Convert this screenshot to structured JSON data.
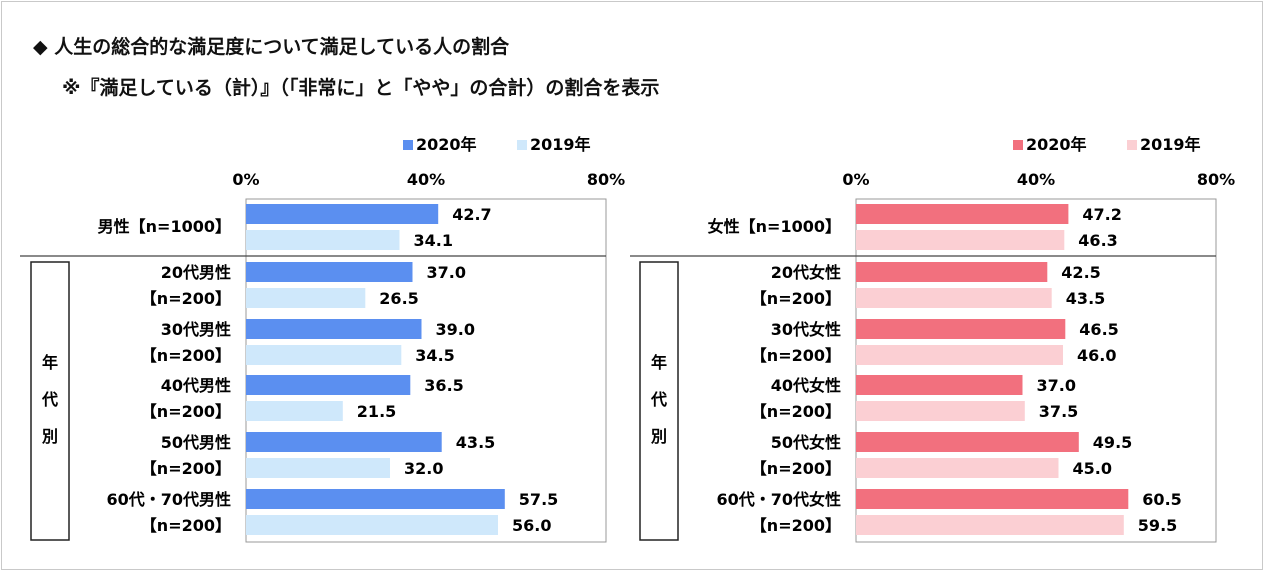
{
  "title": "◆ 人生の総合的な満足度について満足している人の割合",
  "subtitle": "※『満足している（計）』（「非常に」と「やや」の合計）の割合を表示",
  "colors": {
    "male_2020": "#5b8ff0",
    "male_2019": "#cfe8fb",
    "female_2020": "#f2707e",
    "female_2019": "#fbcfd3"
  },
  "chart_data": [
    {
      "type": "bar",
      "orientation": "horizontal",
      "xlim": [
        0,
        80
      ],
      "ticks": [
        "0%",
        "40%",
        "80%"
      ],
      "tick_values": [
        0,
        40,
        80
      ],
      "legend": [
        "2020年",
        "2019年"
      ],
      "legend_position": "top-right",
      "group_label": "年代別",
      "categories": [
        {
          "label": "男性【n=1000】",
          "line1": "男性【n=1000】",
          "line2": ""
        },
        {
          "label": "20代男性【n=200】",
          "line1": "20代男性",
          "line2": "【n=200】"
        },
        {
          "label": "30代男性【n=200】",
          "line1": "30代男性",
          "line2": "【n=200】"
        },
        {
          "label": "40代男性【n=200】",
          "line1": "40代男性",
          "line2": "【n=200】"
        },
        {
          "label": "50代男性【n=200】",
          "line1": "50代男性",
          "line2": "【n=200】"
        },
        {
          "label": "60代・70代男性【n=200】",
          "line1": "60代・70代男性",
          "line2": "【n=200】"
        }
      ],
      "series": [
        {
          "name": "2020年",
          "values": [
            42.7,
            37.0,
            39.0,
            36.5,
            43.5,
            57.5
          ],
          "labels": [
            "42.7",
            "37.0",
            "39.0",
            "36.5",
            "43.5",
            "57.5"
          ]
        },
        {
          "name": "2019年",
          "values": [
            34.1,
            26.5,
            34.5,
            21.5,
            32.0,
            56.0
          ],
          "labels": [
            "34.1",
            "26.5",
            "34.5",
            "21.5",
            "32.0",
            "56.0"
          ]
        }
      ]
    },
    {
      "type": "bar",
      "orientation": "horizontal",
      "xlim": [
        0,
        80
      ],
      "ticks": [
        "0%",
        "40%",
        "80%"
      ],
      "tick_values": [
        0,
        40,
        80
      ],
      "legend": [
        "2020年",
        "2019年"
      ],
      "legend_position": "top-right",
      "group_label": "年代別",
      "categories": [
        {
          "label": "女性【n=1000】",
          "line1": "女性【n=1000】",
          "line2": ""
        },
        {
          "label": "20代女性【n=200】",
          "line1": "20代女性",
          "line2": "【n=200】"
        },
        {
          "label": "30代女性【n=200】",
          "line1": "30代女性",
          "line2": "【n=200】"
        },
        {
          "label": "40代女性【n=200】",
          "line1": "40代女性",
          "line2": "【n=200】"
        },
        {
          "label": "50代女性【n=200】",
          "line1": "50代女性",
          "line2": "【n=200】"
        },
        {
          "label": "60代・70代女性【n=200】",
          "line1": "60代・70代女性",
          "line2": "【n=200】"
        }
      ],
      "series": [
        {
          "name": "2020年",
          "values": [
            47.2,
            42.5,
            46.5,
            37.0,
            49.5,
            60.5
          ],
          "labels": [
            "47.2",
            "42.5",
            "46.5",
            "37.0",
            "49.5",
            "60.5"
          ]
        },
        {
          "name": "2019年",
          "values": [
            46.3,
            43.5,
            46.0,
            37.5,
            45.0,
            59.5
          ],
          "labels": [
            "46.3",
            "43.5",
            "46.0",
            "37.5",
            "45.0",
            "59.5"
          ]
        }
      ]
    }
  ]
}
